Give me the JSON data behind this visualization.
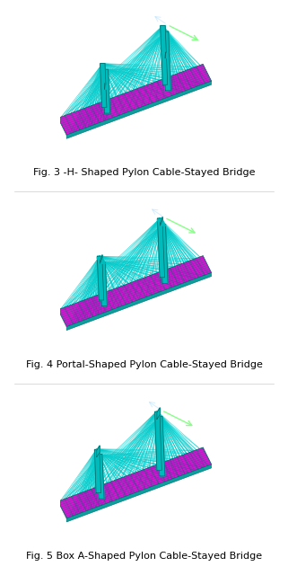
{
  "figures": [
    {
      "caption": "Fig. 3 -H- Shaped Pylon Cable-Stayed Bridge",
      "pylon_type": "H"
    },
    {
      "caption": "Fig. 4 Portal-Shaped Pylon Cable-Stayed Bridge",
      "pylon_type": "Portal"
    },
    {
      "caption": "Fig. 5 Box A-Shaped Pylon Cable-Stayed Bridge",
      "pylon_type": "BoxA"
    }
  ],
  "cable_color": "#00CCCC",
  "deck_top_color": "#CC00CC",
  "deck_side_color": "#009999",
  "pylon_color": "#00BBBB",
  "pylon_edge_color": "#006666",
  "axis_color_x": "#88FF88",
  "axis_color_y": "#FF8888",
  "background": "#FFFFFF",
  "caption_fontsize": 8.0
}
